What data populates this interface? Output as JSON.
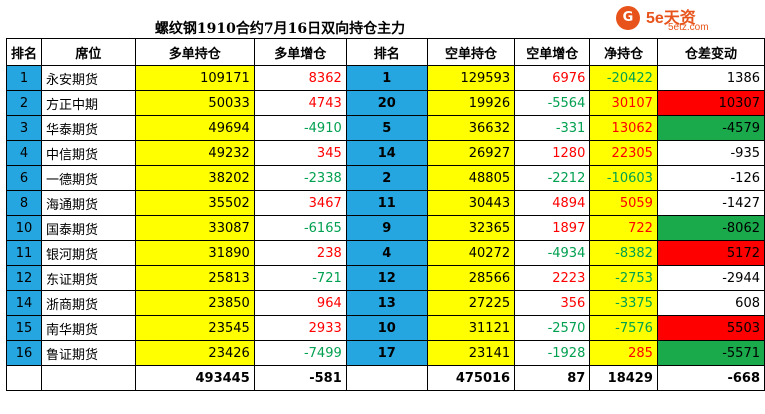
{
  "title": "螺纹钢1910合约7月16日双向持仓主力",
  "logo": {
    "mark": "G",
    "name": "5e天资",
    "site": "5etz.com"
  },
  "headers": [
    "排名",
    "席位",
    "多单持仓",
    "多单增仓",
    "排名",
    "空单持仓",
    "空单增仓",
    "净持仓",
    "仓差变动"
  ],
  "rows": [
    {
      "rank": "1",
      "name": "永安期货",
      "long": "109171",
      "long_chg": "8362",
      "srank": "1",
      "short": "129593",
      "short_chg": "6976",
      "net": "-20422",
      "diff": "1386"
    },
    {
      "rank": "2",
      "name": "方正中期",
      "long": "50033",
      "long_chg": "4743",
      "srank": "20",
      "short": "19926",
      "short_chg": "-5564",
      "net": "30107",
      "diff": "10307"
    },
    {
      "rank": "3",
      "name": "华泰期货",
      "long": "49694",
      "long_chg": "-4910",
      "srank": "5",
      "short": "36632",
      "short_chg": "-331",
      "net": "13062",
      "diff": "-4579"
    },
    {
      "rank": "4",
      "name": "中信期货",
      "long": "49232",
      "long_chg": "345",
      "srank": "14",
      "short": "26927",
      "short_chg": "1280",
      "net": "22305",
      "diff": "-935"
    },
    {
      "rank": "6",
      "name": "一德期货",
      "long": "38202",
      "long_chg": "-2338",
      "srank": "2",
      "short": "48805",
      "short_chg": "-2212",
      "net": "-10603",
      "diff": "-126"
    },
    {
      "rank": "8",
      "name": "海通期货",
      "long": "35502",
      "long_chg": "3467",
      "srank": "11",
      "short": "30443",
      "short_chg": "4894",
      "net": "5059",
      "diff": "-1427"
    },
    {
      "rank": "10",
      "name": "国泰期货",
      "long": "33087",
      "long_chg": "-6165",
      "srank": "9",
      "short": "32365",
      "short_chg": "1897",
      "net": "722",
      "diff": "-8062"
    },
    {
      "rank": "11",
      "name": "银河期货",
      "long": "31890",
      "long_chg": "238",
      "srank": "4",
      "short": "40272",
      "short_chg": "-4934",
      "net": "-8382",
      "diff": "5172"
    },
    {
      "rank": "12",
      "name": "东证期货",
      "long": "25813",
      "long_chg": "-721",
      "srank": "12",
      "short": "28566",
      "short_chg": "2223",
      "net": "-2753",
      "diff": "-2944"
    },
    {
      "rank": "14",
      "name": "浙商期货",
      "long": "23850",
      "long_chg": "964",
      "srank": "13",
      "short": "27225",
      "short_chg": "356",
      "net": "-3375",
      "diff": "608"
    },
    {
      "rank": "15",
      "name": "南华期货",
      "long": "23545",
      "long_chg": "2933",
      "srank": "10",
      "short": "31121",
      "short_chg": "-2570",
      "net": "-7576",
      "diff": "5503"
    },
    {
      "rank": "16",
      "name": "鲁证期货",
      "long": "23426",
      "long_chg": "-7499",
      "srank": "17",
      "short": "23141",
      "short_chg": "-1928",
      "net": "285",
      "diff": "-5571"
    }
  ],
  "totals": {
    "long": "493445",
    "long_chg": "-581",
    "short": "475016",
    "short_chg": "87",
    "net": "18429",
    "diff": "-668"
  },
  "colors": {
    "rank_blue": "#26a6e0",
    "yellow": "#ffff00",
    "red": "#ff0000",
    "green": "#1aa94b"
  }
}
